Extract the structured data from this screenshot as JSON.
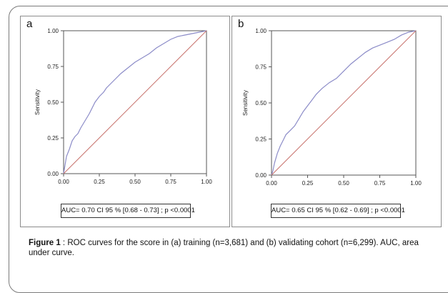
{
  "caption": {
    "label": "Figure 1",
    "text": " : ROC curves for the score in (a) training (n=3,681) and (b) validating cohort (n=6,299). AUC, area under curve."
  },
  "colors": {
    "roc_curve": "#8c8cc8",
    "reference_line": "#c8736e",
    "axis": "#555555"
  },
  "chart_data": [
    {
      "type": "line",
      "panel_label": "a",
      "ylabel": "Sensitivity",
      "xlabel": "",
      "xlim": [
        0,
        1
      ],
      "ylim": [
        0,
        1
      ],
      "xticks": [
        "0.00",
        "0.25",
        "0.50",
        "0.75",
        "1.00"
      ],
      "yticks": [
        "0.00",
        "0.25",
        "0.50",
        "0.75",
        "1.00"
      ],
      "annotation": "AUC= 0.70 CI 95 % [0.68 - 0.73] ; p <0.0001",
      "series": [
        {
          "role": "roc",
          "x": [
            0,
            0.01,
            0.02,
            0.04,
            0.06,
            0.08,
            0.1,
            0.12,
            0.15,
            0.18,
            0.2,
            0.22,
            0.25,
            0.28,
            0.3,
            0.33,
            0.36,
            0.4,
            0.45,
            0.5,
            0.55,
            0.6,
            0.65,
            0.7,
            0.75,
            0.8,
            0.85,
            0.9,
            0.95,
            1.0
          ],
          "y": [
            0,
            0.06,
            0.12,
            0.17,
            0.23,
            0.26,
            0.28,
            0.32,
            0.37,
            0.42,
            0.46,
            0.5,
            0.54,
            0.57,
            0.6,
            0.63,
            0.66,
            0.7,
            0.74,
            0.78,
            0.81,
            0.84,
            0.88,
            0.91,
            0.94,
            0.96,
            0.97,
            0.98,
            0.99,
            1.0
          ]
        },
        {
          "role": "reference",
          "x": [
            0,
            1
          ],
          "y": [
            0,
            1
          ]
        }
      ]
    },
    {
      "type": "line",
      "panel_label": "b",
      "ylabel": "Sensitivity",
      "xlabel": "",
      "xlim": [
        0,
        1
      ],
      "ylim": [
        0,
        1
      ],
      "xticks": [
        "0.00",
        "0.25",
        "0.50",
        "0.75",
        "1.00"
      ],
      "yticks": [
        "0.00",
        "0.25",
        "0.50",
        "0.75",
        "1.00"
      ],
      "annotation": "AUC= 0.65 CI 95 % [0.62 - 0.69] ; p <0.0001",
      "series": [
        {
          "role": "roc",
          "x": [
            0,
            0.01,
            0.02,
            0.04,
            0.06,
            0.08,
            0.1,
            0.13,
            0.16,
            0.19,
            0.22,
            0.25,
            0.28,
            0.31,
            0.35,
            0.4,
            0.45,
            0.5,
            0.55,
            0.6,
            0.65,
            0.7,
            0.75,
            0.8,
            0.85,
            0.9,
            0.95,
            1.0
          ],
          "y": [
            0,
            0.03,
            0.08,
            0.15,
            0.2,
            0.24,
            0.28,
            0.31,
            0.34,
            0.39,
            0.44,
            0.48,
            0.52,
            0.56,
            0.6,
            0.64,
            0.67,
            0.72,
            0.77,
            0.81,
            0.85,
            0.88,
            0.9,
            0.92,
            0.94,
            0.97,
            0.99,
            1.0
          ]
        },
        {
          "role": "reference",
          "x": [
            0,
            1
          ],
          "y": [
            0,
            1
          ]
        }
      ]
    }
  ]
}
